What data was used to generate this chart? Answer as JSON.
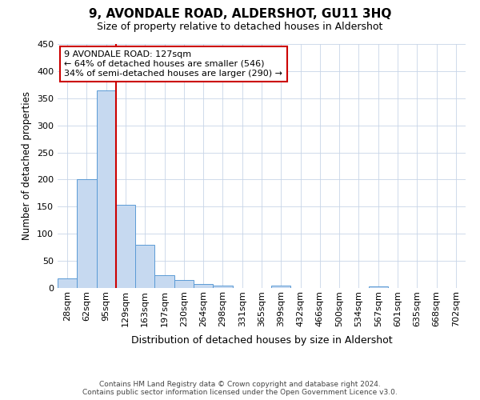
{
  "title": "9, AVONDALE ROAD, ALDERSHOT, GU11 3HQ",
  "subtitle": "Size of property relative to detached houses in Aldershot",
  "xlabel": "Distribution of detached houses by size in Aldershot",
  "ylabel": "Number of detached properties",
  "bin_labels": [
    "28sqm",
    "62sqm",
    "95sqm",
    "129sqm",
    "163sqm",
    "197sqm",
    "230sqm",
    "264sqm",
    "298sqm",
    "331sqm",
    "365sqm",
    "399sqm",
    "432sqm",
    "466sqm",
    "500sqm",
    "534sqm",
    "567sqm",
    "601sqm",
    "635sqm",
    "668sqm",
    "702sqm"
  ],
  "bar_values": [
    18,
    201,
    365,
    153,
    79,
    23,
    15,
    8,
    5,
    0,
    0,
    4,
    0,
    0,
    0,
    0,
    3,
    0,
    0,
    0,
    0
  ],
  "bar_color": "#c6d9f0",
  "bar_edge_color": "#5b9bd5",
  "vline_color": "#cc0000",
  "annotation_title": "9 AVONDALE ROAD: 127sqm",
  "annotation_line2": "← 64% of detached houses are smaller (546)",
  "annotation_line3": "34% of semi-detached houses are larger (290) →",
  "annotation_box_color": "#ffffff",
  "annotation_box_edge": "#cc0000",
  "ylim": [
    0,
    450
  ],
  "yticks": [
    0,
    50,
    100,
    150,
    200,
    250,
    300,
    350,
    400,
    450
  ],
  "footer_line1": "Contains HM Land Registry data © Crown copyright and database right 2024.",
  "footer_line2": "Contains public sector information licensed under the Open Government Licence v3.0.",
  "background_color": "#ffffff",
  "grid_color": "#c8d4e8",
  "title_fontsize": 11,
  "subtitle_fontsize": 9,
  "ylabel_fontsize": 8.5,
  "xlabel_fontsize": 9,
  "tick_fontsize": 8,
  "annotation_fontsize": 8,
  "footer_fontsize": 6.5
}
